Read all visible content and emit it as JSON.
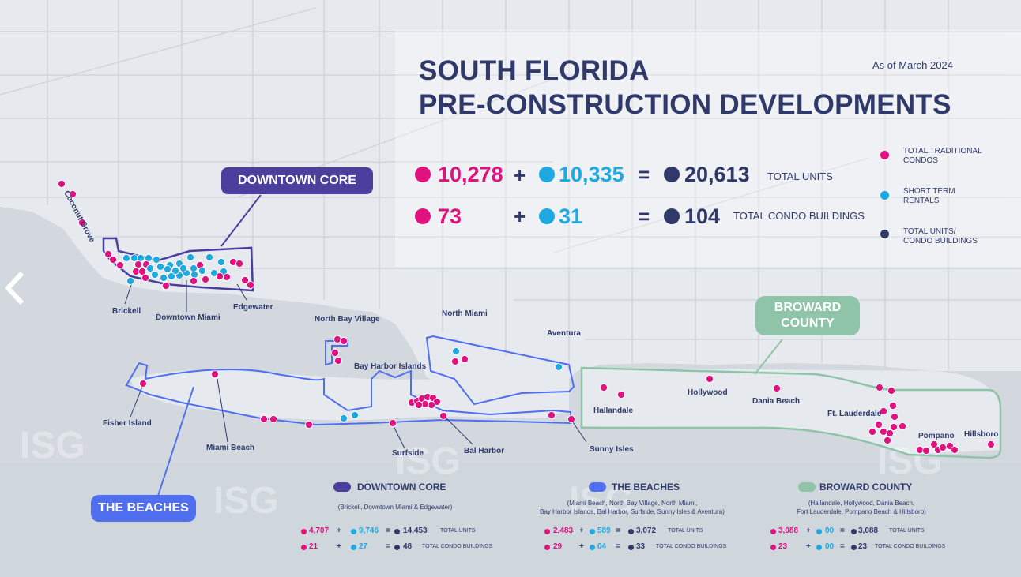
{
  "title": {
    "line1": "SOUTH FLORIDA",
    "line2": "PRE-CONSTRUCTION DEVELOPMENTS",
    "as_of": "As of March 2024"
  },
  "totals": {
    "units": {
      "condos": "10,278",
      "rentals": "10,335",
      "total": "20,613",
      "label": "TOTAL UNITS"
    },
    "buildings": {
      "condos": "73",
      "rentals": "31",
      "total": "104",
      "label": "TOTAL CONDO BUILDINGS"
    },
    "plus": "+",
    "equals": "="
  },
  "legend": [
    {
      "label": "TOTAL TRADITIONAL CONDOS",
      "color": "#e1127f"
    },
    {
      "label": "SHORT TERM RENTALS",
      "color": "#1ea9e1"
    },
    {
      "label": "TOTAL UNITS/ CONDO BUILDINGS",
      "color": "#2f3a6b"
    }
  ],
  "regions": {
    "downtown": "DOWNTOWN CORE",
    "beaches": "THE BEACHES",
    "broward_line1": "BROWARD",
    "broward_line2": "COUNTY"
  },
  "places": {
    "coconut_grove": "Coconut Grove",
    "brickell": "Brickell",
    "downtown_miami": "Downtown Miami",
    "edgewater": "Edgewater",
    "north_bay_village": "North Bay Village",
    "north_miami": "North Miami",
    "aventura": "Aventura",
    "bay_harbor": "Bay Harbor Islands",
    "fisher_island": "Fisher Island",
    "miami_beach": "Miami Beach",
    "surfside": "Surfside",
    "bal_harbor": "Bal Harbor",
    "sunny_isles": "Sunny Isles",
    "hallandale": "Hallandale",
    "hollywood": "Hollywood",
    "dania_beach": "Dania Beach",
    "ft_lauderdale": "Ft. Lauderdale",
    "pompano": "Pompano",
    "hillsboro": "Hillsboro"
  },
  "summaries": {
    "downtown": {
      "title": "DOWNTOWN CORE",
      "subtitle": "(Brickell, Downtown Miami & Edgewater)",
      "color": "#4b3f9e",
      "units": {
        "condos": "4,707",
        "rentals": "9,746",
        "total": "14,453",
        "label": "TOTAL UNITS"
      },
      "buildings": {
        "condos": "21",
        "rentals": "27",
        "total": "48",
        "label": "TOTAL CONDO BUILDINGS"
      }
    },
    "beaches": {
      "title": "THE BEACHES",
      "subtitle_line1": "(Miami Beach, North Bay Village, North Miami,",
      "subtitle_line2": "Bay Harbor Islands, Bal Harbor, Surfside, Sunny Isles & Aventura)",
      "color": "#4f6ff0",
      "units": {
        "condos": "2,483",
        "rentals": "589",
        "total": "3,072",
        "label": "TOTAL UNITS"
      },
      "buildings": {
        "condos": "29",
        "rentals": "04",
        "total": "33",
        "label": "TOTAL CONDO BUILDINGS"
      }
    },
    "broward": {
      "title": "BROWARD COUNTY",
      "subtitle_line1": "(Hallandale, Hollywood, Dania Beach,",
      "subtitle_line2": "Fort Lauderdale, Pompano Beach & Hillsboro)",
      "color": "#8fc4a8",
      "units": {
        "condos": "3,088",
        "rentals": "00",
        "total": "3,088",
        "label": "TOTAL UNITS"
      },
      "buildings": {
        "condos": "23",
        "rentals": "00",
        "total": "23",
        "label": "TOTAL CONDO BUILDINGS"
      }
    }
  },
  "colors": {
    "condo": "#e1127f",
    "rental": "#1ea9e1",
    "total": "#2f3a6b",
    "land": "#e3e8ec",
    "water": "#cdd4da"
  },
  "icons": {
    "prev": "chevron-left-icon"
  }
}
